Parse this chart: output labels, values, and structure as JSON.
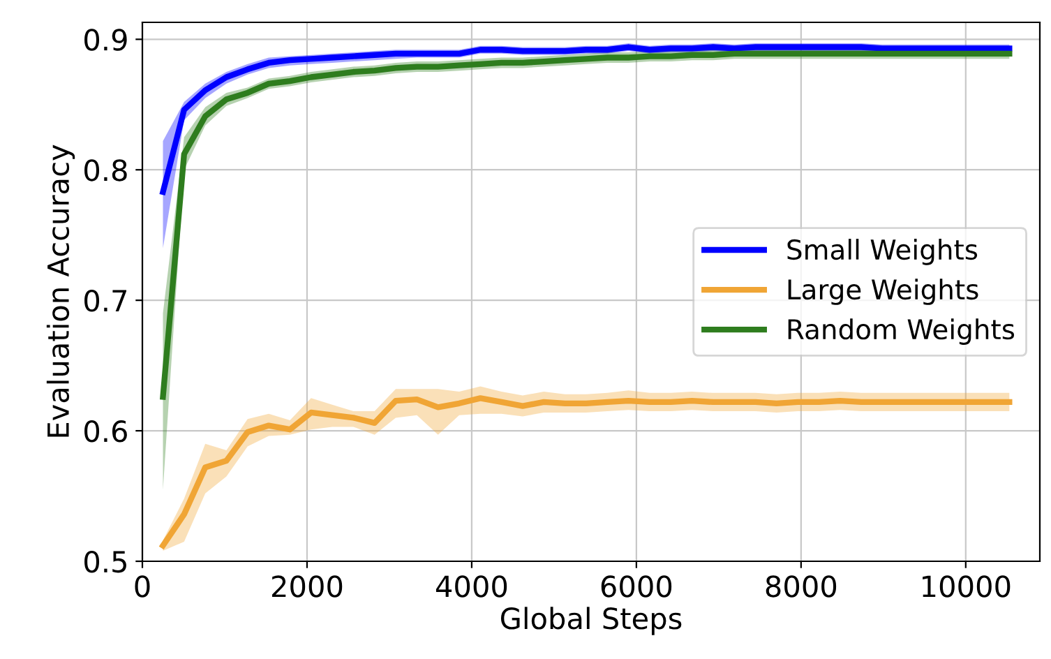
{
  "chart_data": {
    "type": "line",
    "xlabel": "Global Steps",
    "ylabel": "Evaluation Accuracy",
    "x": [
      250,
      507,
      764,
      1021,
      1278,
      1535,
      1792,
      2049,
      2306,
      2563,
      2820,
      3077,
      3334,
      3591,
      3848,
      4105,
      4362,
      4619,
      4876,
      5133,
      5390,
      5647,
      5904,
      6161,
      6418,
      6675,
      6932,
      7189,
      7446,
      7703,
      7960,
      8217,
      8474,
      8731,
      8988,
      9245,
      9502,
      9759,
      10016,
      10273,
      10530
    ],
    "series": [
      {
        "name": "Small Weights",
        "color": "#0000ff",
        "values": [
          0.783,
          0.846,
          0.861,
          0.871,
          0.877,
          0.882,
          0.884,
          0.885,
          0.886,
          0.887,
          0.888,
          0.889,
          0.889,
          0.889,
          0.889,
          0.892,
          0.892,
          0.891,
          0.891,
          0.891,
          0.892,
          0.892,
          0.894,
          0.892,
          0.893,
          0.893,
          0.894,
          0.893,
          0.894,
          0.894,
          0.894,
          0.894,
          0.894,
          0.894,
          0.893,
          0.893,
          0.893,
          0.893,
          0.893,
          0.893,
          0.893
        ],
        "lower": [
          0.74,
          0.838,
          0.855,
          0.866,
          0.873,
          0.878,
          0.88,
          0.881,
          0.882,
          0.883,
          0.884,
          0.885,
          0.886,
          0.886,
          0.886,
          0.889,
          0.889,
          0.888,
          0.888,
          0.888,
          0.889,
          0.889,
          0.891,
          0.889,
          0.89,
          0.89,
          0.891,
          0.89,
          0.891,
          0.891,
          0.891,
          0.891,
          0.891,
          0.891,
          0.89,
          0.89,
          0.89,
          0.89,
          0.89,
          0.89,
          0.89
        ],
        "upper": [
          0.822,
          0.852,
          0.866,
          0.875,
          0.881,
          0.886,
          0.887,
          0.888,
          0.889,
          0.89,
          0.891,
          0.892,
          0.892,
          0.892,
          0.892,
          0.895,
          0.895,
          0.894,
          0.894,
          0.894,
          0.895,
          0.895,
          0.897,
          0.895,
          0.896,
          0.896,
          0.897,
          0.896,
          0.897,
          0.897,
          0.897,
          0.897,
          0.897,
          0.897,
          0.896,
          0.896,
          0.896,
          0.896,
          0.896,
          0.896,
          0.896
        ]
      },
      {
        "name": "Large Weights",
        "color": "#f0a535",
        "values": [
          0.512,
          0.536,
          0.572,
          0.577,
          0.599,
          0.604,
          0.601,
          0.614,
          0.612,
          0.61,
          0.606,
          0.623,
          0.624,
          0.618,
          0.621,
          0.625,
          0.622,
          0.619,
          0.622,
          0.621,
          0.621,
          0.622,
          0.623,
          0.622,
          0.622,
          0.623,
          0.622,
          0.622,
          0.622,
          0.621,
          0.622,
          0.622,
          0.623,
          0.622,
          0.622,
          0.622,
          0.622,
          0.622,
          0.622,
          0.622,
          0.622
        ],
        "lower": [
          0.508,
          0.515,
          0.552,
          0.565,
          0.588,
          0.596,
          0.597,
          0.601,
          0.603,
          0.603,
          0.597,
          0.61,
          0.612,
          0.597,
          0.612,
          0.613,
          0.613,
          0.611,
          0.614,
          0.614,
          0.614,
          0.615,
          0.616,
          0.615,
          0.615,
          0.616,
          0.615,
          0.615,
          0.615,
          0.614,
          0.615,
          0.615,
          0.616,
          0.615,
          0.615,
          0.615,
          0.615,
          0.615,
          0.615,
          0.615,
          0.615
        ],
        "upper": [
          0.516,
          0.548,
          0.59,
          0.585,
          0.609,
          0.613,
          0.608,
          0.625,
          0.62,
          0.615,
          0.615,
          0.632,
          0.632,
          0.632,
          0.63,
          0.634,
          0.63,
          0.627,
          0.63,
          0.628,
          0.628,
          0.629,
          0.631,
          0.629,
          0.629,
          0.63,
          0.629,
          0.629,
          0.629,
          0.628,
          0.629,
          0.629,
          0.63,
          0.629,
          0.629,
          0.629,
          0.629,
          0.629,
          0.629,
          0.629,
          0.629
        ]
      },
      {
        "name": "Random Weights",
        "color": "#2e7d1e",
        "values": [
          0.626,
          0.812,
          0.841,
          0.854,
          0.859,
          0.866,
          0.868,
          0.871,
          0.873,
          0.875,
          0.876,
          0.878,
          0.879,
          0.879,
          0.88,
          0.881,
          0.882,
          0.882,
          0.883,
          0.884,
          0.885,
          0.886,
          0.886,
          0.887,
          0.887,
          0.888,
          0.888,
          0.889,
          0.889,
          0.889,
          0.889,
          0.889,
          0.889,
          0.889,
          0.889,
          0.889,
          0.889,
          0.889,
          0.889,
          0.889,
          0.889
        ],
        "lower": [
          0.555,
          0.8,
          0.834,
          0.849,
          0.855,
          0.862,
          0.864,
          0.867,
          0.869,
          0.871,
          0.872,
          0.874,
          0.875,
          0.875,
          0.876,
          0.877,
          0.878,
          0.878,
          0.879,
          0.88,
          0.881,
          0.882,
          0.882,
          0.883,
          0.883,
          0.884,
          0.884,
          0.885,
          0.885,
          0.885,
          0.885,
          0.885,
          0.885,
          0.885,
          0.885,
          0.885,
          0.885,
          0.885,
          0.885,
          0.885,
          0.885
        ],
        "upper": [
          0.69,
          0.825,
          0.848,
          0.859,
          0.863,
          0.87,
          0.872,
          0.875,
          0.877,
          0.879,
          0.88,
          0.882,
          0.883,
          0.883,
          0.884,
          0.885,
          0.886,
          0.886,
          0.887,
          0.888,
          0.889,
          0.89,
          0.89,
          0.891,
          0.891,
          0.892,
          0.892,
          0.893,
          0.893,
          0.893,
          0.893,
          0.893,
          0.893,
          0.893,
          0.893,
          0.893,
          0.893,
          0.893,
          0.893,
          0.893,
          0.893
        ]
      }
    ],
    "xlim": [
      0,
      10900
    ],
    "xticks": [
      0,
      2000,
      4000,
      6000,
      8000,
      10000
    ],
    "ylim": [
      0.5,
      0.913
    ],
    "yticks": [
      0.5,
      0.6,
      0.7,
      0.8,
      0.9
    ],
    "grid": true,
    "legend": "center right",
    "marker": "none",
    "line_style": "solid"
  }
}
